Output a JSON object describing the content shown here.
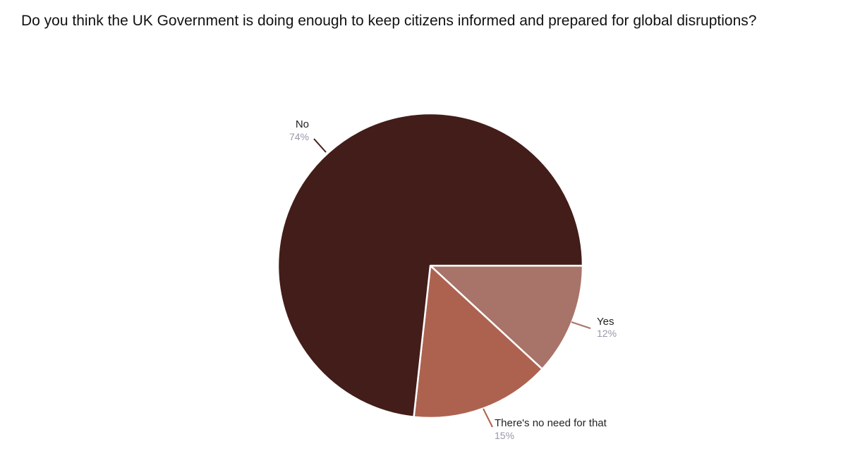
{
  "chart_data": {
    "type": "pie",
    "title": "Do you think the UK Government is doing enough to keep citizens informed and prepared for global disruptions?",
    "slices": [
      {
        "label": "No",
        "value": 74,
        "value_label": "74%",
        "color": "#431d19"
      },
      {
        "label": "There's no need for that",
        "value": 15,
        "value_label": "15%",
        "color": "#ad6250"
      },
      {
        "label": "Yes",
        "value": 12,
        "value_label": "12%",
        "color": "#a87368"
      }
    ],
    "start": "3 o'clock, clockwise from Yes",
    "legend": "none",
    "label_style": "outside with leader lines"
  }
}
